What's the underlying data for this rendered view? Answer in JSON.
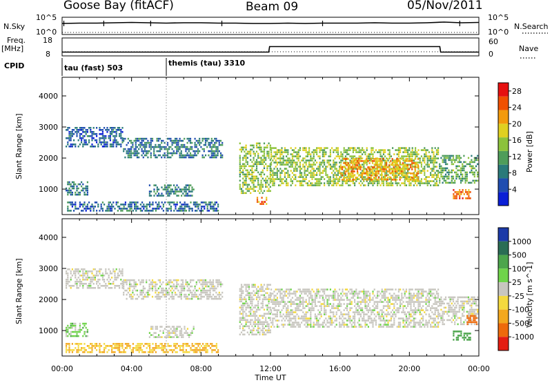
{
  "header": {
    "station": "Goose Bay (fitACF)",
    "beam": "Beam 09",
    "date": "05/Nov/2011"
  },
  "strip_labels": {
    "nsky": "N.Sky",
    "nsearch": "N.Search",
    "freq": "Freq.",
    "freq_unit": "[MHz]",
    "nave": "Nave",
    "cpid": "CPID",
    "nsky_top": "10^5",
    "nsky_bottom": "10^0",
    "nsearch_top": "10^5",
    "nsearch_bottom": "10^0",
    "freq_top": "18",
    "freq_bottom": "8",
    "nave_top": "60",
    "nave_bottom": "0"
  },
  "cpid": [
    {
      "label": "tau (fast) 503",
      "start_hour": 0
    },
    {
      "label": "themis (tau) 3310",
      "start_hour": 6
    }
  ],
  "chart_data": [
    {
      "type": "line",
      "title": "N.Sky / N.Search",
      "x_unit": "hours UT",
      "x": [
        0,
        1,
        2,
        3,
        4,
        5,
        6,
        7,
        8,
        9,
        10,
        11,
        12,
        13,
        14,
        15,
        16,
        17,
        18,
        19,
        20,
        21,
        22,
        23,
        24
      ],
      "series": [
        {
          "name": "N.Sky",
          "values": [
            3.2,
            3.3,
            3.3,
            3.4,
            3.5,
            3.4,
            3.3,
            3.4,
            3.4,
            3.3,
            3.3,
            3.2,
            3.2,
            3.3,
            3.2,
            3.3,
            3.3,
            3.3,
            3.4,
            3.3,
            3.3,
            3.4,
            3.6,
            3.4,
            3.5
          ]
        }
      ],
      "ylim": [
        0,
        5
      ]
    },
    {
      "type": "line",
      "title": "Freq. / Nave",
      "x_unit": "hours UT",
      "x": [
        0,
        11.9,
        11.95,
        21.75,
        21.8,
        24
      ],
      "series": [
        {
          "name": "Freq.",
          "values": [
            10.1,
            10.1,
            13.2,
            13.2,
            10.1,
            10.1
          ]
        }
      ],
      "ylim": [
        8,
        18
      ]
    },
    {
      "type": "heatmap",
      "title": "Power",
      "xlabel": "Time UT",
      "ylabel": "Slant Range [km]",
      "x_ticks": [
        "00:00",
        "04:00",
        "08:00",
        "12:00",
        "16:00",
        "20:00",
        "00:00"
      ],
      "y_ticks": [
        "1000",
        "2000",
        "3000",
        "4000"
      ],
      "xlim": [
        0,
        24
      ],
      "ylim": [
        180,
        4600
      ],
      "colorbar": {
        "label": "Power [dB]",
        "ticks": [
          "4",
          "8",
          "12",
          "16",
          "20",
          "24",
          "28"
        ],
        "range": [
          0,
          30
        ]
      },
      "regions": [
        {
          "t0": 0.2,
          "t1": 3.5,
          "r0": 2350,
          "r1": 3000,
          "level": 5
        },
        {
          "t0": 3.5,
          "t1": 9.2,
          "r0": 2050,
          "r1": 2650,
          "level": 7
        },
        {
          "t0": 0.2,
          "t1": 1.5,
          "r0": 850,
          "r1": 1250,
          "level": 8
        },
        {
          "t0": 5.0,
          "t1": 7.6,
          "r0": 800,
          "r1": 1150,
          "level": 8
        },
        {
          "t0": 10.2,
          "t1": 12.0,
          "r0": 900,
          "r1": 2500,
          "level": 14
        },
        {
          "t0": 12.0,
          "t1": 21.7,
          "r0": 1150,
          "r1": 2350,
          "level": 15
        },
        {
          "t0": 16.0,
          "t1": 20.5,
          "r0": 1300,
          "r1": 2000,
          "level": 22
        },
        {
          "t0": 21.7,
          "t1": 23.9,
          "r0": 1200,
          "r1": 2100,
          "level": 12
        },
        {
          "t0": 22.5,
          "t1": 23.5,
          "r0": 700,
          "r1": 1000,
          "level": 24
        },
        {
          "t0": 11.2,
          "t1": 11.8,
          "r0": 550,
          "r1": 750,
          "level": 24
        },
        {
          "t0": 0.2,
          "t1": 9.0,
          "r0": 300,
          "r1": 600,
          "level": 6
        }
      ]
    },
    {
      "type": "heatmap",
      "title": "Velocity",
      "xlabel": "Time UT",
      "ylabel": "Slant Range [km]",
      "x_ticks": [
        "00:00",
        "04:00",
        "08:00",
        "12:00",
        "16:00",
        "20:00",
        "00:00"
      ],
      "y_ticks": [
        "1000",
        "2000",
        "3000",
        "4000"
      ],
      "xlim": [
        0,
        24
      ],
      "ylim": [
        180,
        4600
      ],
      "colorbar": {
        "label": "Velocity [m s^-1]",
        "ticks": [
          "1000",
          "500",
          "100",
          "25",
          "-25",
          "-100",
          "-500",
          "-1000"
        ]
      },
      "regions": [
        {
          "t0": 0.2,
          "t1": 3.5,
          "r0": 2350,
          "r1": 3000,
          "level": 0
        },
        {
          "t0": 3.5,
          "t1": 9.2,
          "r0": 2050,
          "r1": 2650,
          "level": 0
        },
        {
          "t0": 0.2,
          "t1": 1.5,
          "r0": 850,
          "r1": 1250,
          "level": 40
        },
        {
          "t0": 5.0,
          "t1": 7.6,
          "r0": 800,
          "r1": 1150,
          "level": 0
        },
        {
          "t0": 10.2,
          "t1": 12.0,
          "r0": 900,
          "r1": 2500,
          "level": 0
        },
        {
          "t0": 12.0,
          "t1": 21.7,
          "r0": 1150,
          "r1": 2350,
          "level": 0
        },
        {
          "t0": 21.7,
          "t1": 23.9,
          "r0": 1200,
          "r1": 2100,
          "level": 0
        },
        {
          "t0": 22.5,
          "t1": 23.5,
          "r0": 700,
          "r1": 1000,
          "level": 150
        },
        {
          "t0": 23.3,
          "t1": 23.9,
          "r0": 1200,
          "r1": 1500,
          "level": -400
        },
        {
          "t0": 0.2,
          "t1": 9.0,
          "r0": 300,
          "r1": 600,
          "level": -60
        }
      ]
    }
  ],
  "xaxis": {
    "label": "Time UT",
    "ticks": [
      "00:00",
      "04:00",
      "08:00",
      "12:00",
      "16:00",
      "20:00",
      "00:00"
    ]
  },
  "colors": {
    "power": [
      "#0a1fd6",
      "#1f4db0",
      "#2a7a7a",
      "#4f9d5a",
      "#8cc23b",
      "#e0d020",
      "#f39a0c",
      "#f05000",
      "#e61010"
    ],
    "velocity": {
      "1000": "#1c3aa8",
      "500": "#2a6d55",
      "100": "#4ca54c",
      "25": "#6fd44a",
      "0": "#c8c6bf",
      "-25": "#f4d93e",
      "-100": "#f3a81e",
      "-500": "#ee6a0b",
      "-1000": "#e41d12"
    }
  }
}
